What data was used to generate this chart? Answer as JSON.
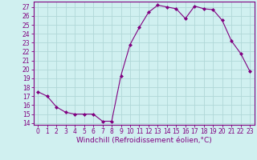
{
  "x": [
    0,
    1,
    2,
    3,
    4,
    5,
    6,
    7,
    8,
    9,
    10,
    11,
    12,
    13,
    14,
    15,
    16,
    17,
    18,
    19,
    20,
    21,
    22,
    23
  ],
  "y": [
    17.5,
    17.0,
    15.8,
    15.2,
    15.0,
    15.0,
    15.0,
    14.2,
    14.2,
    19.3,
    22.8,
    24.7,
    26.4,
    27.2,
    27.0,
    26.8,
    25.7,
    27.1,
    26.8,
    26.7,
    25.5,
    23.2,
    21.8,
    19.8
  ],
  "line_color": "#800080",
  "marker": "D",
  "marker_size": 2,
  "bg_color": "#d0f0f0",
  "grid_color": "#b0d8d8",
  "xlabel": "Windchill (Refroidissement éolien,°C)",
  "ylabel": "",
  "ylim": [
    13.8,
    27.6
  ],
  "xlim": [
    -0.5,
    23.5
  ],
  "yticks": [
    14,
    15,
    16,
    17,
    18,
    19,
    20,
    21,
    22,
    23,
    24,
    25,
    26,
    27
  ],
  "xticks": [
    0,
    1,
    2,
    3,
    4,
    5,
    6,
    7,
    8,
    9,
    10,
    11,
    12,
    13,
    14,
    15,
    16,
    17,
    18,
    19,
    20,
    21,
    22,
    23
  ],
  "tick_color": "#800080",
  "label_color": "#800080",
  "axis_color": "#800080",
  "tick_fontsize": 5.5,
  "xlabel_fontsize": 6.5
}
